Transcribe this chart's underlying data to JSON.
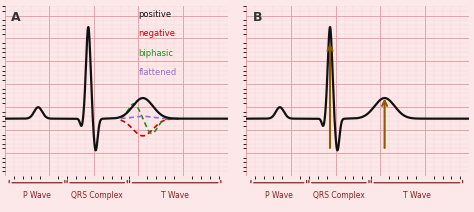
{
  "background_color": "#fce8e8",
  "grid_major_color": "#e8a0a8",
  "grid_minor_color": "#f5d0d5",
  "ecg_color": "#111111",
  "ecg_linewidth": 1.6,
  "arrow_color": "#8B5A00",
  "legend_colors": {
    "positive": "#111111",
    "negative": "#cc0000",
    "biphasic": "#228b22",
    "flattened": "#9370db"
  },
  "panel_A_label": "A",
  "panel_B_label": "B",
  "bracket_color": "#8b2020",
  "bracket_labels": [
    "P Wave",
    "QRS Complex",
    "T Wave"
  ]
}
